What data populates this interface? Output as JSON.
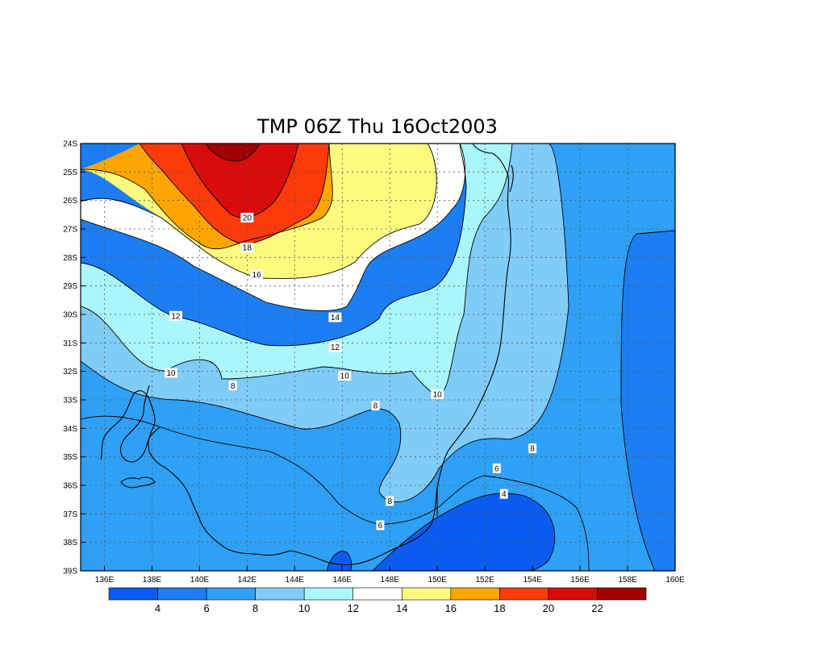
{
  "title": "TMP 06Z Thu 16Oct2003",
  "chart_data": {
    "type": "contour",
    "variable": "TMP",
    "xaxis": {
      "range": [
        135,
        160
      ],
      "ticks": [
        "136E",
        "138E",
        "140E",
        "142E",
        "144E",
        "146E",
        "148E",
        "150E",
        "152E",
        "154E",
        "156E",
        "158E",
        "160E"
      ]
    },
    "yaxis": {
      "range": [
        -39,
        -24
      ],
      "ticks": [
        "24S",
        "25S",
        "26S",
        "27S",
        "28S",
        "29S",
        "30S",
        "31S",
        "32S",
        "33S",
        "34S",
        "35S",
        "36S",
        "37S",
        "38S",
        "39S"
      ]
    },
    "grid": "dotted",
    "colorbar": {
      "labels": [
        "4",
        "6",
        "8",
        "10",
        "12",
        "14",
        "16",
        "18",
        "20",
        "22"
      ],
      "colors": [
        "#0a5cf0",
        "#1c7ef2",
        "#2ea0f5",
        "#80ccf8",
        "#aaf7fb",
        "#ffffff",
        "#fdfa80",
        "#fda500",
        "#fd3a0a",
        "#d90b0a",
        "#a00000"
      ]
    },
    "contour_labels": [
      {
        "value": "20",
        "lon": 142.0,
        "lat": -26.6
      },
      {
        "value": "18",
        "lon": 142.0,
        "lat": -27.65
      },
      {
        "value": "16",
        "lon": 142.4,
        "lat": -28.6
      },
      {
        "value": "14",
        "lon": 145.7,
        "lat": -30.1
      },
      {
        "value": "12",
        "lon": 139.0,
        "lat": -30.05
      },
      {
        "value": "12",
        "lon": 145.7,
        "lat": -31.15
      },
      {
        "value": "10",
        "lon": 138.8,
        "lat": -32.05
      },
      {
        "value": "10",
        "lon": 146.1,
        "lat": -32.15
      },
      {
        "value": "10",
        "lon": 150.0,
        "lat": -32.8
      },
      {
        "value": "8",
        "lon": 141.4,
        "lat": -32.5
      },
      {
        "value": "8",
        "lon": 147.4,
        "lat": -33.2
      },
      {
        "value": "8",
        "lon": 148.0,
        "lat": -36.55
      },
      {
        "value": "8",
        "lon": 154.0,
        "lat": -34.7
      },
      {
        "value": "6",
        "lon": 152.5,
        "lat": -35.4
      },
      {
        "value": "6",
        "lon": 147.6,
        "lat": -37.4
      },
      {
        "value": "4",
        "lon": 152.8,
        "lat": -36.3
      }
    ]
  }
}
